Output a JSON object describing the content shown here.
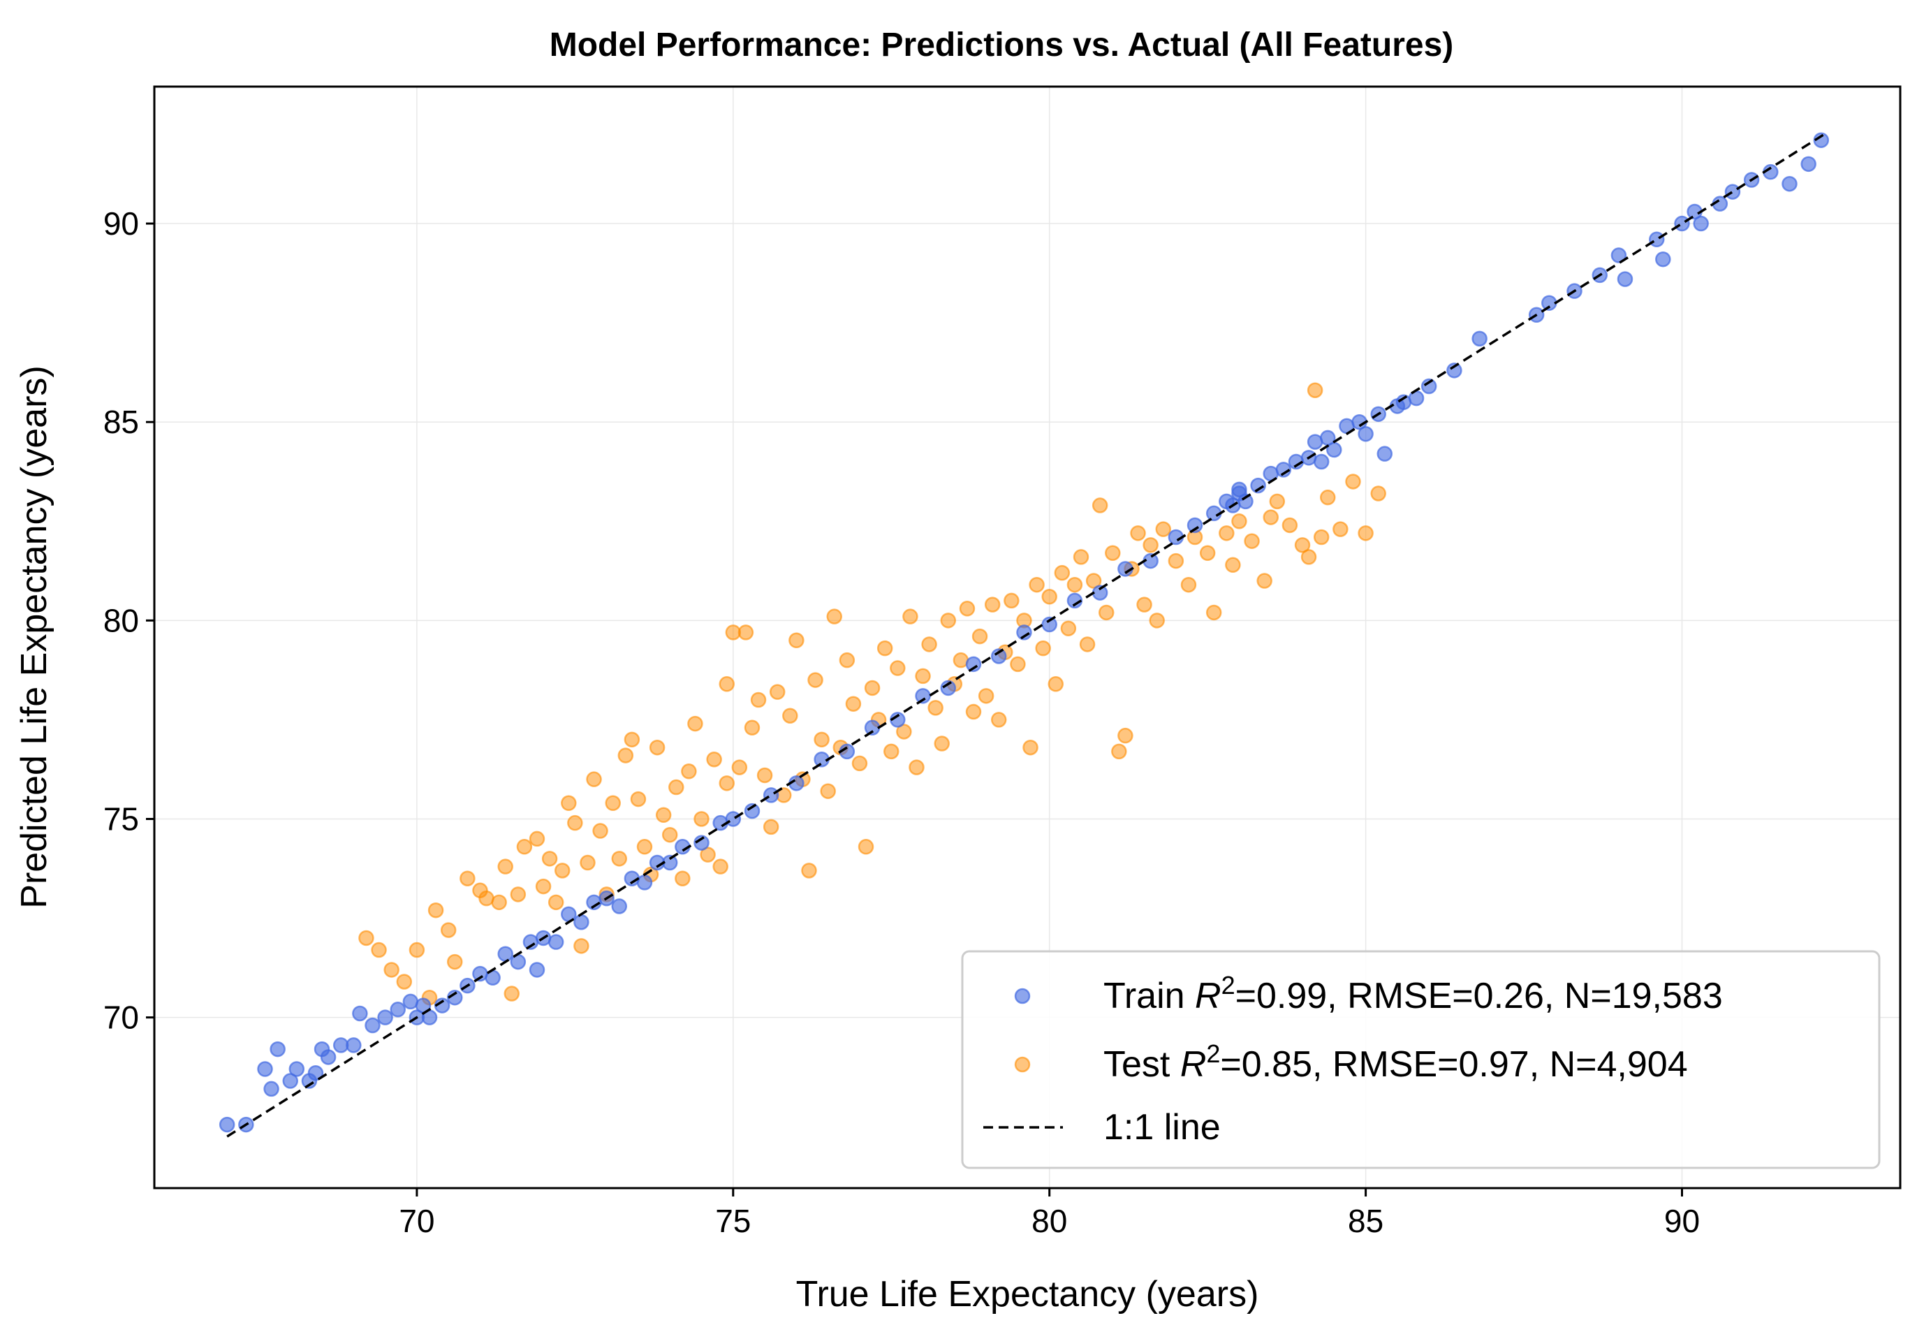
{
  "chart_data": {
    "type": "scatter",
    "title": "Model Performance: Predictions vs. Actual (All Features)",
    "xlabel": "True Life Expectancy (years)",
    "ylabel": "Predicted Life Expectancy (years)",
    "xlim": [
      65.85,
      93.45
    ],
    "ylim": [
      65.7,
      93.45
    ],
    "xticks": [
      70,
      75,
      80,
      85,
      90
    ],
    "yticks": [
      70,
      75,
      80,
      85,
      90
    ],
    "grid": true,
    "legend_position": "lower-right",
    "colors": {
      "train": "#4169E1",
      "test": "#FF8C00",
      "line": "#000000"
    },
    "series": [
      {
        "name": "Train",
        "legend_label": "=0.99, RMSE=0.26, N=19,583",
        "values": [
          [
            67.0,
            67.3
          ],
          [
            67.3,
            67.3
          ],
          [
            67.6,
            68.7
          ],
          [
            67.7,
            68.2
          ],
          [
            67.8,
            69.2
          ],
          [
            68.0,
            68.4
          ],
          [
            68.1,
            68.7
          ],
          [
            68.3,
            68.4
          ],
          [
            68.4,
            68.6
          ],
          [
            68.5,
            69.2
          ],
          [
            68.6,
            69.0
          ],
          [
            68.8,
            69.3
          ],
          [
            69.0,
            69.3
          ],
          [
            69.1,
            70.1
          ],
          [
            69.3,
            69.8
          ],
          [
            69.5,
            70.0
          ],
          [
            69.7,
            70.2
          ],
          [
            69.9,
            70.4
          ],
          [
            70.0,
            70.0
          ],
          [
            70.1,
            70.3
          ],
          [
            70.4,
            70.3
          ],
          [
            70.6,
            70.5
          ],
          [
            70.8,
            70.8
          ],
          [
            71.0,
            71.1
          ],
          [
            71.2,
            71.0
          ],
          [
            71.4,
            71.6
          ],
          [
            71.6,
            71.4
          ],
          [
            71.8,
            71.9
          ],
          [
            72.0,
            72.0
          ],
          [
            72.2,
            71.9
          ],
          [
            72.4,
            72.6
          ],
          [
            72.6,
            72.4
          ],
          [
            72.8,
            72.9
          ],
          [
            73.0,
            73.0
          ],
          [
            73.2,
            72.8
          ],
          [
            73.4,
            73.5
          ],
          [
            73.6,
            73.4
          ],
          [
            73.8,
            73.9
          ],
          [
            74.0,
            73.9
          ],
          [
            74.2,
            74.3
          ],
          [
            74.5,
            74.4
          ],
          [
            74.8,
            74.9
          ],
          [
            75.0,
            75.0
          ],
          [
            75.3,
            75.2
          ],
          [
            75.6,
            75.6
          ],
          [
            76.0,
            75.9
          ],
          [
            76.4,
            76.5
          ],
          [
            76.8,
            76.7
          ],
          [
            77.2,
            77.3
          ],
          [
            77.6,
            77.5
          ],
          [
            78.0,
            78.1
          ],
          [
            78.4,
            78.3
          ],
          [
            78.8,
            78.9
          ],
          [
            79.2,
            79.1
          ],
          [
            79.6,
            79.7
          ],
          [
            80.0,
            79.9
          ],
          [
            80.4,
            80.5
          ],
          [
            80.8,
            80.7
          ],
          [
            81.2,
            81.3
          ],
          [
            81.6,
            81.5
          ],
          [
            82.0,
            82.1
          ],
          [
            82.3,
            82.4
          ],
          [
            82.6,
            82.7
          ],
          [
            82.8,
            83.0
          ],
          [
            83.0,
            83.2
          ],
          [
            83.1,
            83.0
          ],
          [
            83.3,
            83.4
          ],
          [
            83.5,
            83.7
          ],
          [
            83.7,
            83.8
          ],
          [
            83.9,
            84.0
          ],
          [
            84.1,
            84.1
          ],
          [
            84.2,
            84.5
          ],
          [
            84.4,
            84.6
          ],
          [
            84.5,
            84.3
          ],
          [
            84.7,
            84.9
          ],
          [
            84.9,
            85.0
          ],
          [
            85.0,
            84.7
          ],
          [
            85.2,
            85.2
          ],
          [
            85.3,
            84.2
          ],
          [
            85.5,
            85.4
          ],
          [
            85.6,
            85.5
          ],
          [
            85.8,
            85.6
          ],
          [
            86.0,
            85.9
          ],
          [
            86.4,
            86.3
          ],
          [
            86.8,
            87.1
          ],
          [
            87.7,
            87.7
          ],
          [
            87.9,
            88.0
          ],
          [
            88.3,
            88.3
          ],
          [
            88.7,
            88.7
          ],
          [
            89.0,
            89.2
          ],
          [
            89.1,
            88.6
          ],
          [
            89.6,
            89.6
          ],
          [
            89.7,
            89.1
          ],
          [
            90.0,
            90.0
          ],
          [
            90.2,
            90.3
          ],
          [
            90.3,
            90.0
          ],
          [
            90.6,
            90.5
          ],
          [
            90.8,
            90.8
          ],
          [
            91.1,
            91.1
          ],
          [
            91.4,
            91.3
          ],
          [
            91.7,
            91.0
          ],
          [
            92.0,
            91.5
          ],
          [
            92.2,
            92.1
          ],
          [
            83.0,
            83.3
          ],
          [
            84.3,
            84.0
          ],
          [
            82.9,
            82.9
          ],
          [
            71.9,
            71.2
          ],
          [
            70.2,
            70.0
          ]
        ]
      },
      {
        "name": "Test",
        "legend_label": "=0.85, RMSE=0.97, N=4,904",
        "values": [
          [
            69.2,
            72.0
          ],
          [
            69.4,
            71.7
          ],
          [
            69.6,
            71.2
          ],
          [
            69.8,
            70.9
          ],
          [
            70.0,
            71.7
          ],
          [
            70.2,
            70.5
          ],
          [
            70.3,
            72.7
          ],
          [
            70.5,
            72.2
          ],
          [
            70.6,
            71.4
          ],
          [
            70.8,
            73.5
          ],
          [
            71.0,
            73.2
          ],
          [
            71.1,
            73.0
          ],
          [
            71.3,
            72.9
          ],
          [
            71.4,
            73.8
          ],
          [
            71.5,
            70.6
          ],
          [
            71.6,
            73.1
          ],
          [
            71.7,
            74.3
          ],
          [
            71.9,
            74.5
          ],
          [
            72.0,
            73.3
          ],
          [
            72.1,
            74.0
          ],
          [
            72.2,
            72.9
          ],
          [
            72.3,
            73.7
          ],
          [
            72.4,
            75.4
          ],
          [
            72.5,
            74.9
          ],
          [
            72.6,
            71.8
          ],
          [
            72.7,
            73.9
          ],
          [
            72.8,
            76.0
          ],
          [
            72.9,
            74.7
          ],
          [
            73.0,
            73.1
          ],
          [
            73.1,
            75.4
          ],
          [
            73.2,
            74.0
          ],
          [
            73.3,
            76.6
          ],
          [
            73.4,
            77.0
          ],
          [
            73.5,
            75.5
          ],
          [
            73.6,
            74.3
          ],
          [
            73.7,
            73.6
          ],
          [
            73.8,
            76.8
          ],
          [
            73.9,
            75.1
          ],
          [
            74.0,
            74.6
          ],
          [
            74.1,
            75.8
          ],
          [
            74.2,
            73.5
          ],
          [
            74.3,
            76.2
          ],
          [
            74.4,
            77.4
          ],
          [
            74.5,
            75.0
          ],
          [
            74.6,
            74.1
          ],
          [
            74.7,
            76.5
          ],
          [
            74.8,
            73.8
          ],
          [
            74.9,
            75.9
          ],
          [
            75.0,
            79.7
          ],
          [
            75.1,
            76.3
          ],
          [
            75.2,
            79.7
          ],
          [
            75.3,
            77.3
          ],
          [
            75.4,
            78.0
          ],
          [
            75.5,
            76.1
          ],
          [
            75.6,
            74.8
          ],
          [
            75.7,
            78.2
          ],
          [
            75.8,
            75.6
          ],
          [
            75.9,
            77.6
          ],
          [
            76.0,
            79.5
          ],
          [
            76.1,
            76.0
          ],
          [
            76.2,
            73.7
          ],
          [
            76.3,
            78.5
          ],
          [
            76.4,
            77.0
          ],
          [
            76.5,
            75.7
          ],
          [
            76.6,
            80.1
          ],
          [
            76.7,
            76.8
          ],
          [
            76.8,
            79.0
          ],
          [
            76.9,
            77.9
          ],
          [
            77.0,
            76.4
          ],
          [
            77.1,
            74.3
          ],
          [
            77.2,
            78.3
          ],
          [
            77.3,
            77.5
          ],
          [
            77.4,
            79.3
          ],
          [
            77.5,
            76.7
          ],
          [
            77.6,
            78.8
          ],
          [
            77.7,
            77.2
          ],
          [
            77.8,
            80.1
          ],
          [
            77.9,
            76.3
          ],
          [
            78.0,
            78.6
          ],
          [
            78.1,
            79.4
          ],
          [
            78.2,
            77.8
          ],
          [
            78.3,
            76.9
          ],
          [
            78.4,
            80.0
          ],
          [
            78.5,
            78.4
          ],
          [
            78.6,
            79.0
          ],
          [
            78.7,
            80.3
          ],
          [
            78.8,
            77.7
          ],
          [
            78.9,
            79.6
          ],
          [
            79.0,
            78.1
          ],
          [
            79.1,
            80.4
          ],
          [
            79.2,
            77.5
          ],
          [
            79.3,
            79.2
          ],
          [
            79.4,
            80.5
          ],
          [
            79.5,
            78.9
          ],
          [
            79.6,
            80.0
          ],
          [
            79.7,
            76.8
          ],
          [
            79.8,
            80.9
          ],
          [
            79.9,
            79.3
          ],
          [
            80.0,
            80.6
          ],
          [
            80.1,
            78.4
          ],
          [
            80.2,
            81.2
          ],
          [
            80.3,
            79.8
          ],
          [
            80.4,
            80.9
          ],
          [
            80.5,
            81.6
          ],
          [
            80.6,
            79.4
          ],
          [
            80.7,
            81.0
          ],
          [
            80.8,
            82.9
          ],
          [
            80.9,
            80.2
          ],
          [
            81.0,
            81.7
          ],
          [
            81.1,
            76.7
          ],
          [
            81.2,
            77.1
          ],
          [
            81.3,
            81.3
          ],
          [
            81.4,
            82.2
          ],
          [
            81.5,
            80.4
          ],
          [
            81.6,
            81.9
          ],
          [
            81.7,
            80.0
          ],
          [
            81.8,
            82.3
          ],
          [
            82.0,
            81.5
          ],
          [
            82.2,
            80.9
          ],
          [
            82.3,
            82.1
          ],
          [
            82.5,
            81.7
          ],
          [
            82.6,
            80.2
          ],
          [
            82.8,
            82.2
          ],
          [
            82.9,
            81.4
          ],
          [
            83.0,
            82.5
          ],
          [
            83.2,
            82.0
          ],
          [
            83.4,
            81.0
          ],
          [
            83.5,
            82.6
          ],
          [
            83.6,
            83.0
          ],
          [
            83.8,
            82.4
          ],
          [
            84.0,
            81.9
          ],
          [
            84.1,
            81.6
          ],
          [
            84.2,
            85.8
          ],
          [
            84.4,
            83.1
          ],
          [
            84.6,
            82.3
          ],
          [
            84.8,
            83.5
          ],
          [
            85.0,
            82.2
          ],
          [
            85.2,
            83.2
          ],
          [
            84.3,
            82.1
          ],
          [
            74.9,
            78.4
          ]
        ]
      }
    ],
    "reference_line": {
      "name": "1:1 line",
      "from": [
        67.0,
        67.0
      ],
      "to": [
        92.3,
        92.3
      ]
    }
  }
}
